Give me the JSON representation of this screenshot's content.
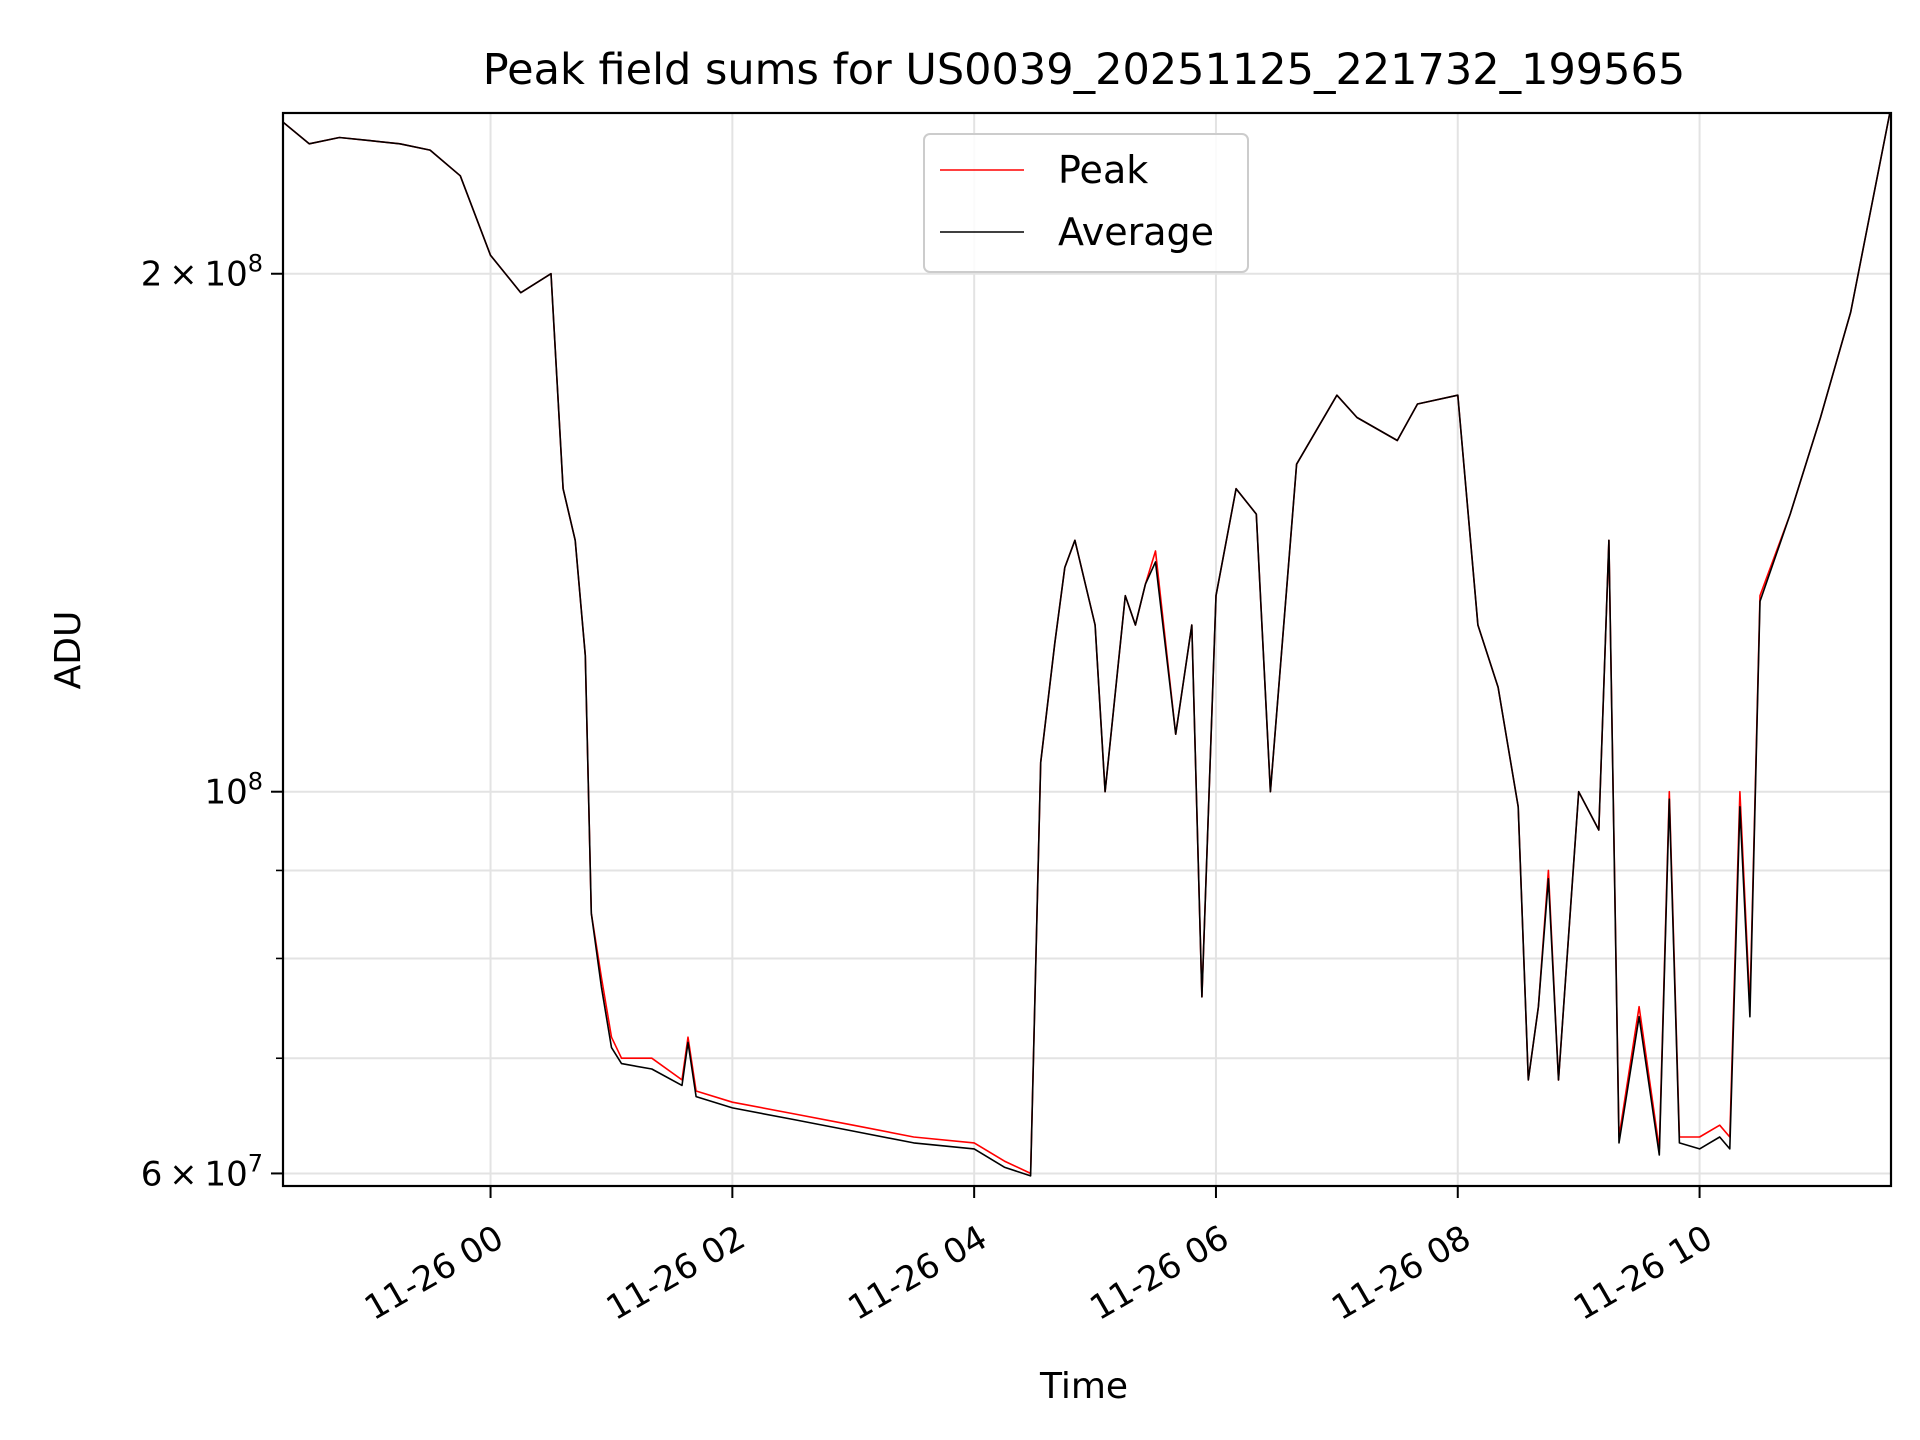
{
  "chart_data": {
    "type": "line",
    "title": "Peak field sums for US0039_20251125_221732_199565",
    "xlabel": "Time",
    "ylabel": "ADU",
    "yscale": "log",
    "grid": true,
    "legend_position": "top-center",
    "xlim": [
      "2025-11-25 22:17",
      "2025-11-26 11:35"
    ],
    "ylim": [
      59000000,
      248000000
    ],
    "x_ticks": [
      "2025-11-26 00:00",
      "2025-11-26 02:00",
      "2025-11-26 04:00",
      "2025-11-26 06:00",
      "2025-11-26 08:00",
      "2025-11-26 10:00"
    ],
    "x_tick_labels": [
      "11-26 00",
      "11-26 02",
      "11-26 04",
      "11-26 06",
      "11-26 08",
      "11-26 10"
    ],
    "y_major_ticks": [
      {
        "value": 60000000,
        "mantissa": "6",
        "exponent": "7"
      },
      {
        "value": 100000000,
        "mantissa": "",
        "exponent": "8"
      },
      {
        "value": 200000000,
        "mantissa": "2",
        "exponent": "8"
      }
    ],
    "y_minor_ticks": [
      70000000,
      80000000,
      90000000
    ],
    "series": [
      {
        "name": "Peak",
        "color": "#ff0000",
        "points": [
          [
            "2025-11-25 22:17",
            245000000
          ],
          [
            "2025-11-25 22:30",
            238000000
          ],
          [
            "2025-11-25 22:45",
            240000000
          ],
          [
            "2025-11-25 23:00",
            239000000
          ],
          [
            "2025-11-25 23:15",
            238000000
          ],
          [
            "2025-11-25 23:30",
            236000000
          ],
          [
            "2025-11-25 23:45",
            228000000
          ],
          [
            "2025-11-26 00:00",
            205000000
          ],
          [
            "2025-11-26 00:15",
            195000000
          ],
          [
            "2025-11-26 00:30",
            200000000
          ],
          [
            "2025-11-26 00:36",
            150000000
          ],
          [
            "2025-11-26 00:42",
            140000000
          ],
          [
            "2025-11-26 00:47",
            120000000
          ],
          [
            "2025-11-26 00:50",
            85000000
          ],
          [
            "2025-11-26 00:55",
            78000000
          ],
          [
            "2025-11-26 01:00",
            72000000
          ],
          [
            "2025-11-26 01:05",
            70000000
          ],
          [
            "2025-11-26 01:20",
            70000000
          ],
          [
            "2025-11-26 01:35",
            68000000
          ],
          [
            "2025-11-26 01:38",
            72000000
          ],
          [
            "2025-11-26 01:42",
            67000000
          ],
          [
            "2025-11-26 02:00",
            66000000
          ],
          [
            "2025-11-26 02:30",
            65000000
          ],
          [
            "2025-11-26 03:00",
            64000000
          ],
          [
            "2025-11-26 03:30",
            63000000
          ],
          [
            "2025-11-26 04:00",
            62500000
          ],
          [
            "2025-11-26 04:15",
            61000000
          ],
          [
            "2025-11-26 04:28",
            60000000
          ],
          [
            "2025-11-26 04:33",
            104000000
          ],
          [
            "2025-11-26 04:40",
            122000000
          ],
          [
            "2025-11-26 04:45",
            135000000
          ],
          [
            "2025-11-26 04:50",
            140000000
          ],
          [
            "2025-11-26 05:00",
            125000000
          ],
          [
            "2025-11-26 05:05",
            100000000
          ],
          [
            "2025-11-26 05:15",
            130000000
          ],
          [
            "2025-11-26 05:20",
            125000000
          ],
          [
            "2025-11-26 05:25",
            132000000
          ],
          [
            "2025-11-26 05:30",
            138000000
          ],
          [
            "2025-11-26 05:40",
            108000000
          ],
          [
            "2025-11-26 05:48",
            125000000
          ],
          [
            "2025-11-26 05:53",
            76000000
          ],
          [
            "2025-11-26 06:00",
            130000000
          ],
          [
            "2025-11-26 06:10",
            150000000
          ],
          [
            "2025-11-26 06:20",
            145000000
          ],
          [
            "2025-11-26 06:27",
            100000000
          ],
          [
            "2025-11-26 06:40",
            155000000
          ],
          [
            "2025-11-26 07:00",
            170000000
          ],
          [
            "2025-11-26 07:10",
            165000000
          ],
          [
            "2025-11-26 07:30",
            160000000
          ],
          [
            "2025-11-26 07:40",
            168000000
          ],
          [
            "2025-11-26 08:00",
            170000000
          ],
          [
            "2025-11-26 08:10",
            125000000
          ],
          [
            "2025-11-26 08:20",
            115000000
          ],
          [
            "2025-11-26 08:30",
            98000000
          ],
          [
            "2025-11-26 08:35",
            68000000
          ],
          [
            "2025-11-26 08:40",
            75000000
          ],
          [
            "2025-11-26 08:45",
            90000000
          ],
          [
            "2025-11-26 08:50",
            68000000
          ],
          [
            "2025-11-26 09:00",
            100000000
          ],
          [
            "2025-11-26 09:10",
            95000000
          ],
          [
            "2025-11-26 09:15",
            140000000
          ],
          [
            "2025-11-26 09:20",
            63000000
          ],
          [
            "2025-11-26 09:30",
            75000000
          ],
          [
            "2025-11-26 09:40",
            62000000
          ],
          [
            "2025-11-26 09:45",
            100000000
          ],
          [
            "2025-11-26 09:50",
            63000000
          ],
          [
            "2025-11-26 10:00",
            63000000
          ],
          [
            "2025-11-26 10:10",
            64000000
          ],
          [
            "2025-11-26 10:15",
            63000000
          ],
          [
            "2025-11-26 10:20",
            100000000
          ],
          [
            "2025-11-26 10:25",
            75000000
          ],
          [
            "2025-11-26 10:30",
            130000000
          ],
          [
            "2025-11-26 10:45",
            145000000
          ],
          [
            "2025-11-26 11:00",
            165000000
          ],
          [
            "2025-11-26 11:15",
            190000000
          ],
          [
            "2025-11-26 11:35",
            250000000
          ]
        ]
      },
      {
        "name": "Average",
        "color": "#000000",
        "points": [
          [
            "2025-11-25 22:17",
            245000000
          ],
          [
            "2025-11-25 22:30",
            238000000
          ],
          [
            "2025-11-25 22:45",
            240000000
          ],
          [
            "2025-11-25 23:00",
            239000000
          ],
          [
            "2025-11-25 23:15",
            238000000
          ],
          [
            "2025-11-25 23:30",
            236000000
          ],
          [
            "2025-11-25 23:45",
            228000000
          ],
          [
            "2025-11-26 00:00",
            205000000
          ],
          [
            "2025-11-26 00:15",
            195000000
          ],
          [
            "2025-11-26 00:30",
            200000000
          ],
          [
            "2025-11-26 00:36",
            150000000
          ],
          [
            "2025-11-26 00:42",
            140000000
          ],
          [
            "2025-11-26 00:47",
            120000000
          ],
          [
            "2025-11-26 00:50",
            85000000
          ],
          [
            "2025-11-26 00:55",
            77000000
          ],
          [
            "2025-11-26 01:00",
            71000000
          ],
          [
            "2025-11-26 01:05",
            69500000
          ],
          [
            "2025-11-26 01:20",
            69000000
          ],
          [
            "2025-11-26 01:35",
            67500000
          ],
          [
            "2025-11-26 01:38",
            71500000
          ],
          [
            "2025-11-26 01:42",
            66500000
          ],
          [
            "2025-11-26 02:00",
            65500000
          ],
          [
            "2025-11-26 02:30",
            64500000
          ],
          [
            "2025-11-26 03:00",
            63500000
          ],
          [
            "2025-11-26 03:30",
            62500000
          ],
          [
            "2025-11-26 04:00",
            62000000
          ],
          [
            "2025-11-26 04:15",
            60500000
          ],
          [
            "2025-11-26 04:28",
            59800000
          ],
          [
            "2025-11-26 04:33",
            104000000
          ],
          [
            "2025-11-26 04:40",
            122000000
          ],
          [
            "2025-11-26 04:45",
            135000000
          ],
          [
            "2025-11-26 04:50",
            140000000
          ],
          [
            "2025-11-26 05:00",
            125000000
          ],
          [
            "2025-11-26 05:05",
            100000000
          ],
          [
            "2025-11-26 05:15",
            130000000
          ],
          [
            "2025-11-26 05:20",
            125000000
          ],
          [
            "2025-11-26 05:25",
            132000000
          ],
          [
            "2025-11-26 05:30",
            136000000
          ],
          [
            "2025-11-26 05:40",
            108000000
          ],
          [
            "2025-11-26 05:48",
            125000000
          ],
          [
            "2025-11-26 05:53",
            76000000
          ],
          [
            "2025-11-26 06:00",
            130000000
          ],
          [
            "2025-11-26 06:10",
            150000000
          ],
          [
            "2025-11-26 06:20",
            145000000
          ],
          [
            "2025-11-26 06:27",
            100000000
          ],
          [
            "2025-11-26 06:40",
            155000000
          ],
          [
            "2025-11-26 07:00",
            170000000
          ],
          [
            "2025-11-26 07:10",
            165000000
          ],
          [
            "2025-11-26 07:30",
            160000000
          ],
          [
            "2025-11-26 07:40",
            168000000
          ],
          [
            "2025-11-26 08:00",
            170000000
          ],
          [
            "2025-11-26 08:10",
            125000000
          ],
          [
            "2025-11-26 08:20",
            115000000
          ],
          [
            "2025-11-26 08:30",
            98000000
          ],
          [
            "2025-11-26 08:35",
            68000000
          ],
          [
            "2025-11-26 08:40",
            75000000
          ],
          [
            "2025-11-26 08:45",
            89000000
          ],
          [
            "2025-11-26 08:50",
            68000000
          ],
          [
            "2025-11-26 09:00",
            100000000
          ],
          [
            "2025-11-26 09:10",
            95000000
          ],
          [
            "2025-11-26 09:15",
            140000000
          ],
          [
            "2025-11-26 09:20",
            62500000
          ],
          [
            "2025-11-26 09:30",
            74000000
          ],
          [
            "2025-11-26 09:40",
            61500000
          ],
          [
            "2025-11-26 09:45",
            99000000
          ],
          [
            "2025-11-26 09:50",
            62500000
          ],
          [
            "2025-11-26 10:00",
            62000000
          ],
          [
            "2025-11-26 10:10",
            63000000
          ],
          [
            "2025-11-26 10:15",
            62000000
          ],
          [
            "2025-11-26 10:20",
            98000000
          ],
          [
            "2025-11-26 10:25",
            74000000
          ],
          [
            "2025-11-26 10:30",
            129000000
          ],
          [
            "2025-11-26 10:45",
            145000000
          ],
          [
            "2025-11-26 11:00",
            165000000
          ],
          [
            "2025-11-26 11:15",
            190000000
          ],
          [
            "2025-11-26 11:35",
            250000000
          ]
        ]
      }
    ]
  }
}
